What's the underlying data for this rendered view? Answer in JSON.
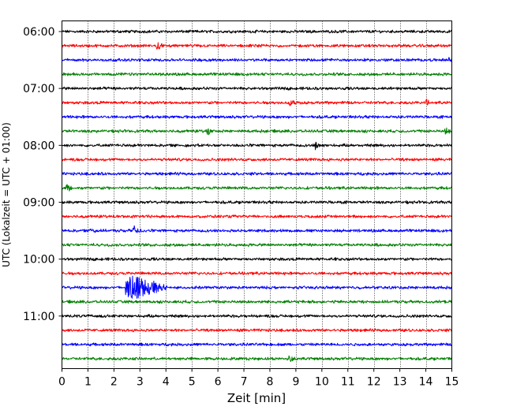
{
  "chart_data": {
    "type": "line",
    "title": "",
    "xlabel": "Zeit  [min]",
    "ylabel": "UTC (Lokalzeit = UTC + 01:00)",
    "xlim": [
      0,
      15
    ],
    "x_ticks": [
      "0",
      "1",
      "2",
      "3",
      "4",
      "5",
      "6",
      "7",
      "8",
      "9",
      "10",
      "11",
      "12",
      "13",
      "14",
      "15"
    ],
    "y_tick_labels": [
      "06:00",
      "07:00",
      "08:00",
      "09:00",
      "10:00",
      "11:00"
    ],
    "trace_interval_min": 15,
    "start_time": "06:00",
    "grid_x": true,
    "trace_colors": [
      "#000000",
      "#ff0000",
      "#0000ff",
      "#008000"
    ],
    "series": [
      {
        "start": "06:00",
        "color": "#000000"
      },
      {
        "start": "06:15",
        "color": "#ff0000",
        "events": [
          {
            "t_min": 3.7,
            "amp": 0.35
          }
        ]
      },
      {
        "start": "06:30",
        "color": "#0000ff",
        "events": [
          {
            "t_min": 14.95,
            "amp": 0.35
          }
        ]
      },
      {
        "start": "06:45",
        "color": "#008000"
      },
      {
        "start": "07:00",
        "color": "#000000"
      },
      {
        "start": "07:15",
        "color": "#ff0000",
        "events": [
          {
            "t_min": 8.8,
            "amp": 0.3
          },
          {
            "t_min": 14.0,
            "amp": 0.3
          }
        ]
      },
      {
        "start": "07:30",
        "color": "#0000ff"
      },
      {
        "start": "07:45",
        "color": "#008000",
        "events": [
          {
            "t_min": 5.6,
            "amp": 0.3
          },
          {
            "t_min": 14.8,
            "amp": 0.35
          }
        ]
      },
      {
        "start": "08:00",
        "color": "#000000",
        "events": [
          {
            "t_min": 9.8,
            "amp": 0.4
          }
        ]
      },
      {
        "start": "08:15",
        "color": "#ff0000"
      },
      {
        "start": "08:30",
        "color": "#0000ff"
      },
      {
        "start": "08:45",
        "color": "#008000",
        "events": [
          {
            "t_min": 0.2,
            "amp": 0.35
          }
        ]
      },
      {
        "start": "09:00",
        "color": "#000000"
      },
      {
        "start": "09:15",
        "color": "#ff0000"
      },
      {
        "start": "09:30",
        "color": "#0000ff",
        "events": [
          {
            "t_min": 2.8,
            "amp": 0.5
          },
          {
            "t_min": 1.1,
            "amp": 0.3
          }
        ]
      },
      {
        "start": "09:45",
        "color": "#008000"
      },
      {
        "start": "10:00",
        "color": "#000000"
      },
      {
        "start": "10:15",
        "color": "#ff0000"
      },
      {
        "start": "10:30",
        "color": "#0000ff",
        "events": [
          {
            "t_min": 2.8,
            "amp": 1.1,
            "dur": 1.2
          }
        ]
      },
      {
        "start": "10:45",
        "color": "#008000"
      },
      {
        "start": "11:00",
        "color": "#000000"
      },
      {
        "start": "11:15",
        "color": "#ff0000"
      },
      {
        "start": "11:30",
        "color": "#0000ff"
      },
      {
        "start": "11:45",
        "color": "#008000",
        "events": [
          {
            "t_min": 8.8,
            "amp": 0.3
          }
        ]
      }
    ]
  }
}
